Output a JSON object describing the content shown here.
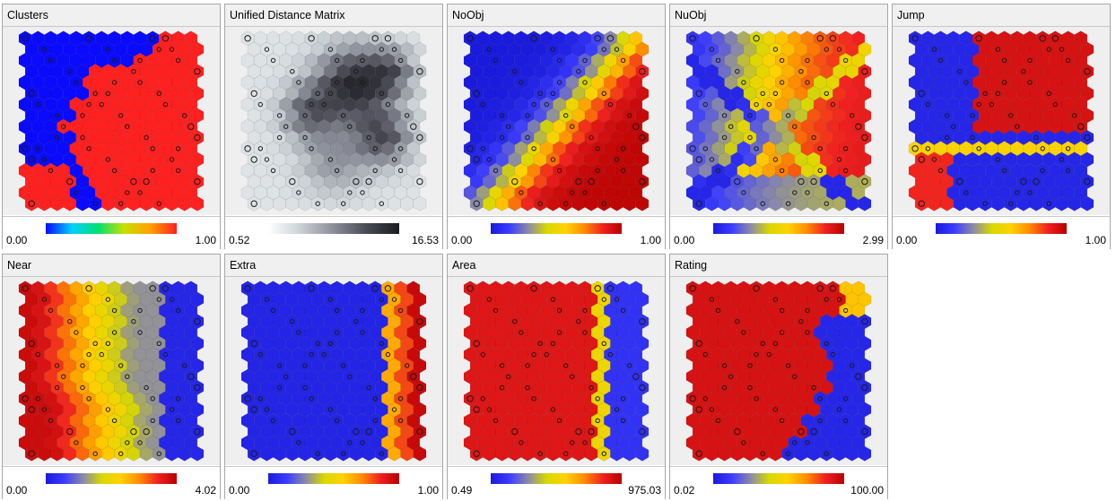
{
  "panels": [
    {
      "title": "Clusters",
      "min": "0.00",
      "max": "1.00",
      "scheme": "jet",
      "pattern": "clusters"
    },
    {
      "title": "Unified Distance Matrix",
      "min": "0.52",
      "max": "16.53",
      "scheme": "gray",
      "pattern": "umatrix"
    },
    {
      "title": "NoObj",
      "min": "0.00",
      "max": "1.00",
      "scheme": "hot",
      "pattern": "noobj"
    },
    {
      "title": "NuObj",
      "min": "0.00",
      "max": "2.99",
      "scheme": "hot",
      "pattern": "nuobj"
    },
    {
      "title": "Jump",
      "min": "0.00",
      "max": "1.00",
      "scheme": "hot",
      "pattern": "jump"
    },
    {
      "title": "Near",
      "min": "0.00",
      "max": "4.02",
      "scheme": "hot",
      "pattern": "near"
    },
    {
      "title": "Extra",
      "min": "0.00",
      "max": "1.00",
      "scheme": "hot",
      "pattern": "extra"
    },
    {
      "title": "Area",
      "min": "0.49",
      "max": "975.03",
      "scheme": "hot",
      "pattern": "area"
    },
    {
      "title": "Rating",
      "min": "0.02",
      "max": "100.00",
      "scheme": "hot",
      "pattern": "rating"
    }
  ],
  "colors": {
    "hot": [
      "#1a1add",
      "#3c3cff",
      "#8a8aa8",
      "#d8d800",
      "#ffd200",
      "#ff8c00",
      "#f02020",
      "#b80000"
    ],
    "jet": [
      "#0a0aff",
      "#00d0ff",
      "#00e070",
      "#c8e000",
      "#ffa000",
      "#ff2020"
    ],
    "gray": [
      "#ffffff",
      "#c9d0d4",
      "#8a8d98",
      "#4a4a55",
      "#1a1a1f"
    ]
  }
}
